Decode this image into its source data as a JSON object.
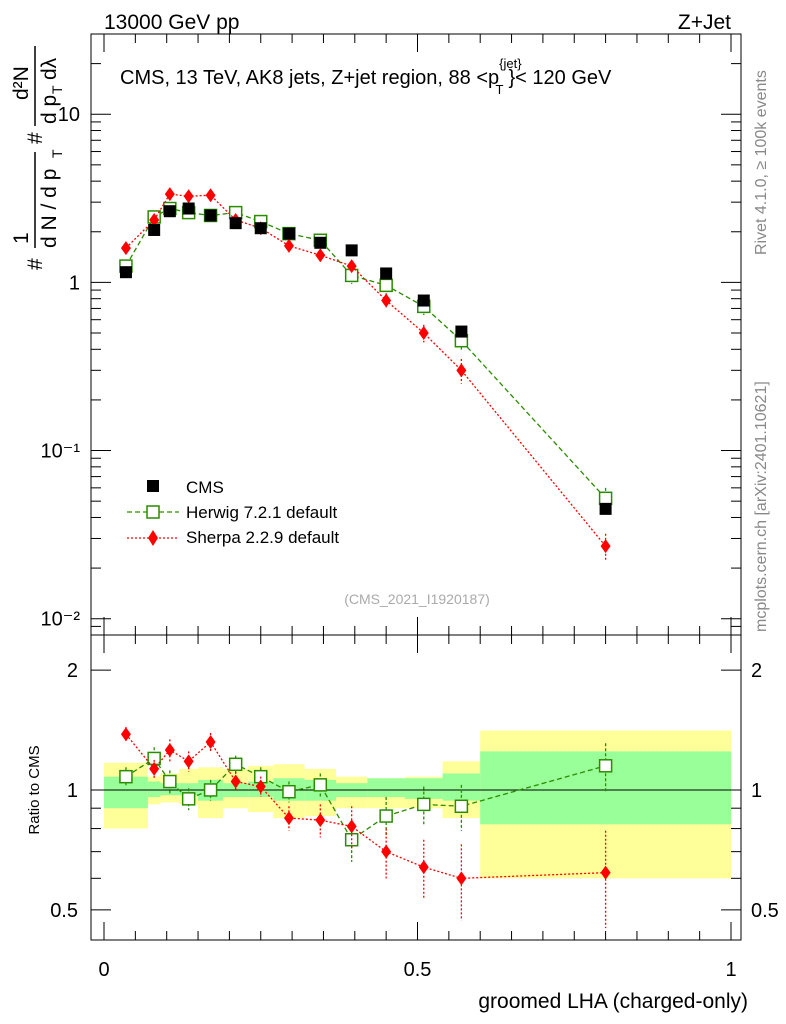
{
  "header": {
    "left": "13000 GeV pp",
    "right": "Z+Jet"
  },
  "side": {
    "rivet": "Rivet 4.1.0, ≥ 100k events",
    "mcplots": "mcplots.cern.ch [arXiv:2401.10621]"
  },
  "main_plot": {
    "title_prefix": "CMS, 13 TeV, AK8 jets, Z+jet region, 88 <p",
    "title_sup": "{jet}",
    "title_sub": "T",
    "title_suffix": "}< 120 GeV",
    "ylabel_parts": [
      "#",
      "1",
      "d N / d p",
      "T",
      "#",
      "d p",
      "T",
      "dλ",
      "d²N"
    ],
    "ytick_labels": [
      "10⁻²",
      "10⁻¹",
      "1",
      "10"
    ],
    "analysis_tag": "(CMS_2021_I1920187)"
  },
  "ratio_plot": {
    "ylabel": "Ratio to CMS",
    "ytick_labels": [
      "0.5",
      "1",
      "2"
    ],
    "xtick_labels": [
      "0",
      "0.5",
      "1"
    ],
    "xlabel": "groomed LHA (charged-only)"
  },
  "legend": [
    {
      "label": "CMS",
      "color": "#000000"
    },
    {
      "label": "Herwig 7.2.1 default",
      "color": "#2a8c00"
    },
    {
      "label": "Sherpa 2.2.9 default",
      "color": "#ff0000"
    }
  ],
  "colors": {
    "data": "#000000",
    "herwig": "#2a8c00",
    "sherpa": "#ff0000",
    "band_inner": "#99ff99",
    "band_outer": "#ffff99"
  },
  "chart_data": [
    {
      "type": "scatter",
      "title": "CMS, 13 TeV, AK8 jets, Z+jet region, 88 < pT < 120 GeV",
      "xlabel": "groomed LHA (charged-only)",
      "ylabel": "1/(dN/dpT) d2N/(dpT dlambda)",
      "yscale": "log",
      "xlim": [
        0,
        1
      ],
      "ylim": [
        0.008,
        30
      ],
      "bin_edges": [
        0,
        0.07,
        0.09,
        0.12,
        0.15,
        0.19,
        0.23,
        0.27,
        0.32,
        0.37,
        0.42,
        0.48,
        0.54,
        0.6,
        1.0
      ],
      "x": [
        0.035,
        0.08,
        0.105,
        0.135,
        0.17,
        0.21,
        0.25,
        0.295,
        0.345,
        0.395,
        0.45,
        0.51,
        0.57,
        0.8
      ],
      "series": [
        {
          "name": "CMS",
          "values": [
            1.15,
            2.05,
            2.65,
            2.75,
            2.5,
            2.25,
            2.1,
            1.95,
            1.72,
            1.55,
            1.13,
            0.78,
            0.51,
            0.045
          ]
        },
        {
          "name": "Herwig 7.2.1 default",
          "values": [
            1.25,
            2.45,
            2.75,
            2.6,
            2.5,
            2.6,
            2.3,
            1.95,
            1.78,
            1.1,
            0.96,
            0.72,
            0.45,
            0.052
          ],
          "errors": [
            0.08,
            0.15,
            0.15,
            0.12,
            0.1,
            0.1,
            0.1,
            0.08,
            0.08,
            0.12,
            0.1,
            0.08,
            0.06,
            0.008
          ]
        },
        {
          "name": "Sherpa 2.2.9 default",
          "values": [
            1.6,
            2.35,
            3.35,
            3.25,
            3.3,
            2.35,
            2.1,
            1.65,
            1.45,
            1.25,
            0.78,
            0.5,
            0.3,
            0.027
          ],
          "errors": [
            0.12,
            0.15,
            0.2,
            0.2,
            0.2,
            0.15,
            0.12,
            0.12,
            0.1,
            0.1,
            0.08,
            0.06,
            0.05,
            0.005
          ]
        }
      ]
    },
    {
      "type": "scatter",
      "title": "Ratio to CMS",
      "xlabel": "groomed LHA (charged-only)",
      "ylabel": "Ratio to CMS",
      "yscale": "log",
      "xlim": [
        0,
        1
      ],
      "ylim": [
        0.42,
        2.45
      ],
      "bin_edges": [
        0,
        0.07,
        0.09,
        0.12,
        0.15,
        0.19,
        0.23,
        0.27,
        0.32,
        0.37,
        0.42,
        0.48,
        0.54,
        0.6,
        1.0
      ],
      "x": [
        0.035,
        0.08,
        0.105,
        0.135,
        0.17,
        0.21,
        0.25,
        0.295,
        0.345,
        0.395,
        0.45,
        0.51,
        0.57,
        0.8
      ],
      "bands": {
        "inner_low": [
          0.9,
          0.96,
          0.97,
          0.97,
          0.94,
          0.96,
          0.96,
          0.94,
          0.94,
          0.96,
          0.96,
          0.95,
          0.94,
          0.82
        ],
        "inner_high": [
          1.08,
          1.05,
          1.04,
          1.04,
          1.06,
          1.04,
          1.05,
          1.07,
          1.06,
          1.04,
          1.07,
          1.07,
          1.1,
          1.25
        ],
        "outer_low": [
          0.8,
          0.92,
          0.93,
          0.92,
          0.85,
          0.9,
          0.88,
          0.85,
          0.86,
          0.9,
          0.9,
          0.9,
          0.85,
          0.6
        ],
        "outer_high": [
          1.17,
          1.08,
          1.1,
          1.13,
          1.14,
          1.13,
          1.15,
          1.16,
          1.13,
          1.08,
          1.07,
          1.08,
          1.18,
          1.41
        ]
      },
      "series": [
        {
          "name": "Herwig 7.2.1 default",
          "values": [
            1.08,
            1.2,
            1.05,
            0.95,
            1.0,
            1.16,
            1.08,
            0.99,
            1.03,
            0.75,
            0.86,
            0.92,
            0.91,
            1.15
          ],
          "errors": [
            0.06,
            0.08,
            0.07,
            0.06,
            0.06,
            0.06,
            0.06,
            0.06,
            0.07,
            0.09,
            0.1,
            0.1,
            0.12,
            0.16
          ]
        },
        {
          "name": "Sherpa 2.2.9 default",
          "values": [
            1.38,
            1.13,
            1.26,
            1.18,
            1.32,
            1.05,
            1.02,
            0.85,
            0.84,
            0.81,
            0.7,
            0.64,
            0.6,
            0.62
          ],
          "errors": [
            0.06,
            0.06,
            0.08,
            0.07,
            0.07,
            0.06,
            0.06,
            0.06,
            0.08,
            0.1,
            0.1,
            0.11,
            0.13,
            0.17
          ]
        }
      ]
    }
  ]
}
